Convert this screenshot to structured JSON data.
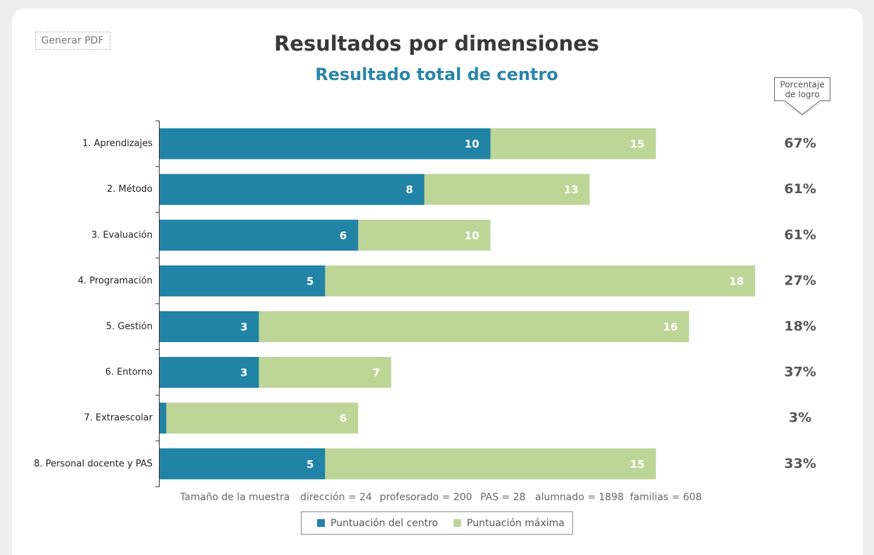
{
  "chart_data": {
    "type": "bar",
    "orientation": "horizontal",
    "overlay": true,
    "button": "Generar PDF",
    "title": "Resultados por dimensiones",
    "subtitle": "Resultado total de centro",
    "percent_header": [
      "Porcentaje",
      "de logro"
    ],
    "categories": [
      "1. Aprendizajes",
      "2. Método",
      "3. Evaluación",
      "4. Programación",
      "5. Gestión",
      "6. Entorno",
      "7. Extraescolar",
      "8. Personal docente y PAS"
    ],
    "series": [
      {
        "name": "Puntuación máxima",
        "color": "#bed598",
        "values": [
          15,
          13,
          10,
          18,
          16,
          7,
          6,
          15
        ]
      },
      {
        "name": "Puntuación del centro",
        "color": "#2183a6",
        "values": [
          10,
          8,
          6,
          5,
          3,
          3,
          0.2,
          5
        ],
        "value_labels": [
          "10",
          "8",
          "6",
          "5",
          "3",
          "3",
          null,
          "5"
        ]
      }
    ],
    "percentages": [
      "67%",
      "61%",
      "61%",
      "27%",
      "18%",
      "37%",
      "3%",
      "33%"
    ],
    "xlim": [
      0,
      18
    ],
    "sample": {
      "label": "Tamaño de la muestra",
      "items": [
        "dirección = 24",
        "profesorado = 200",
        "PAS = 28",
        "alumnado = 1898",
        "familias = 608"
      ]
    },
    "legend_order": [
      1,
      0
    ]
  }
}
